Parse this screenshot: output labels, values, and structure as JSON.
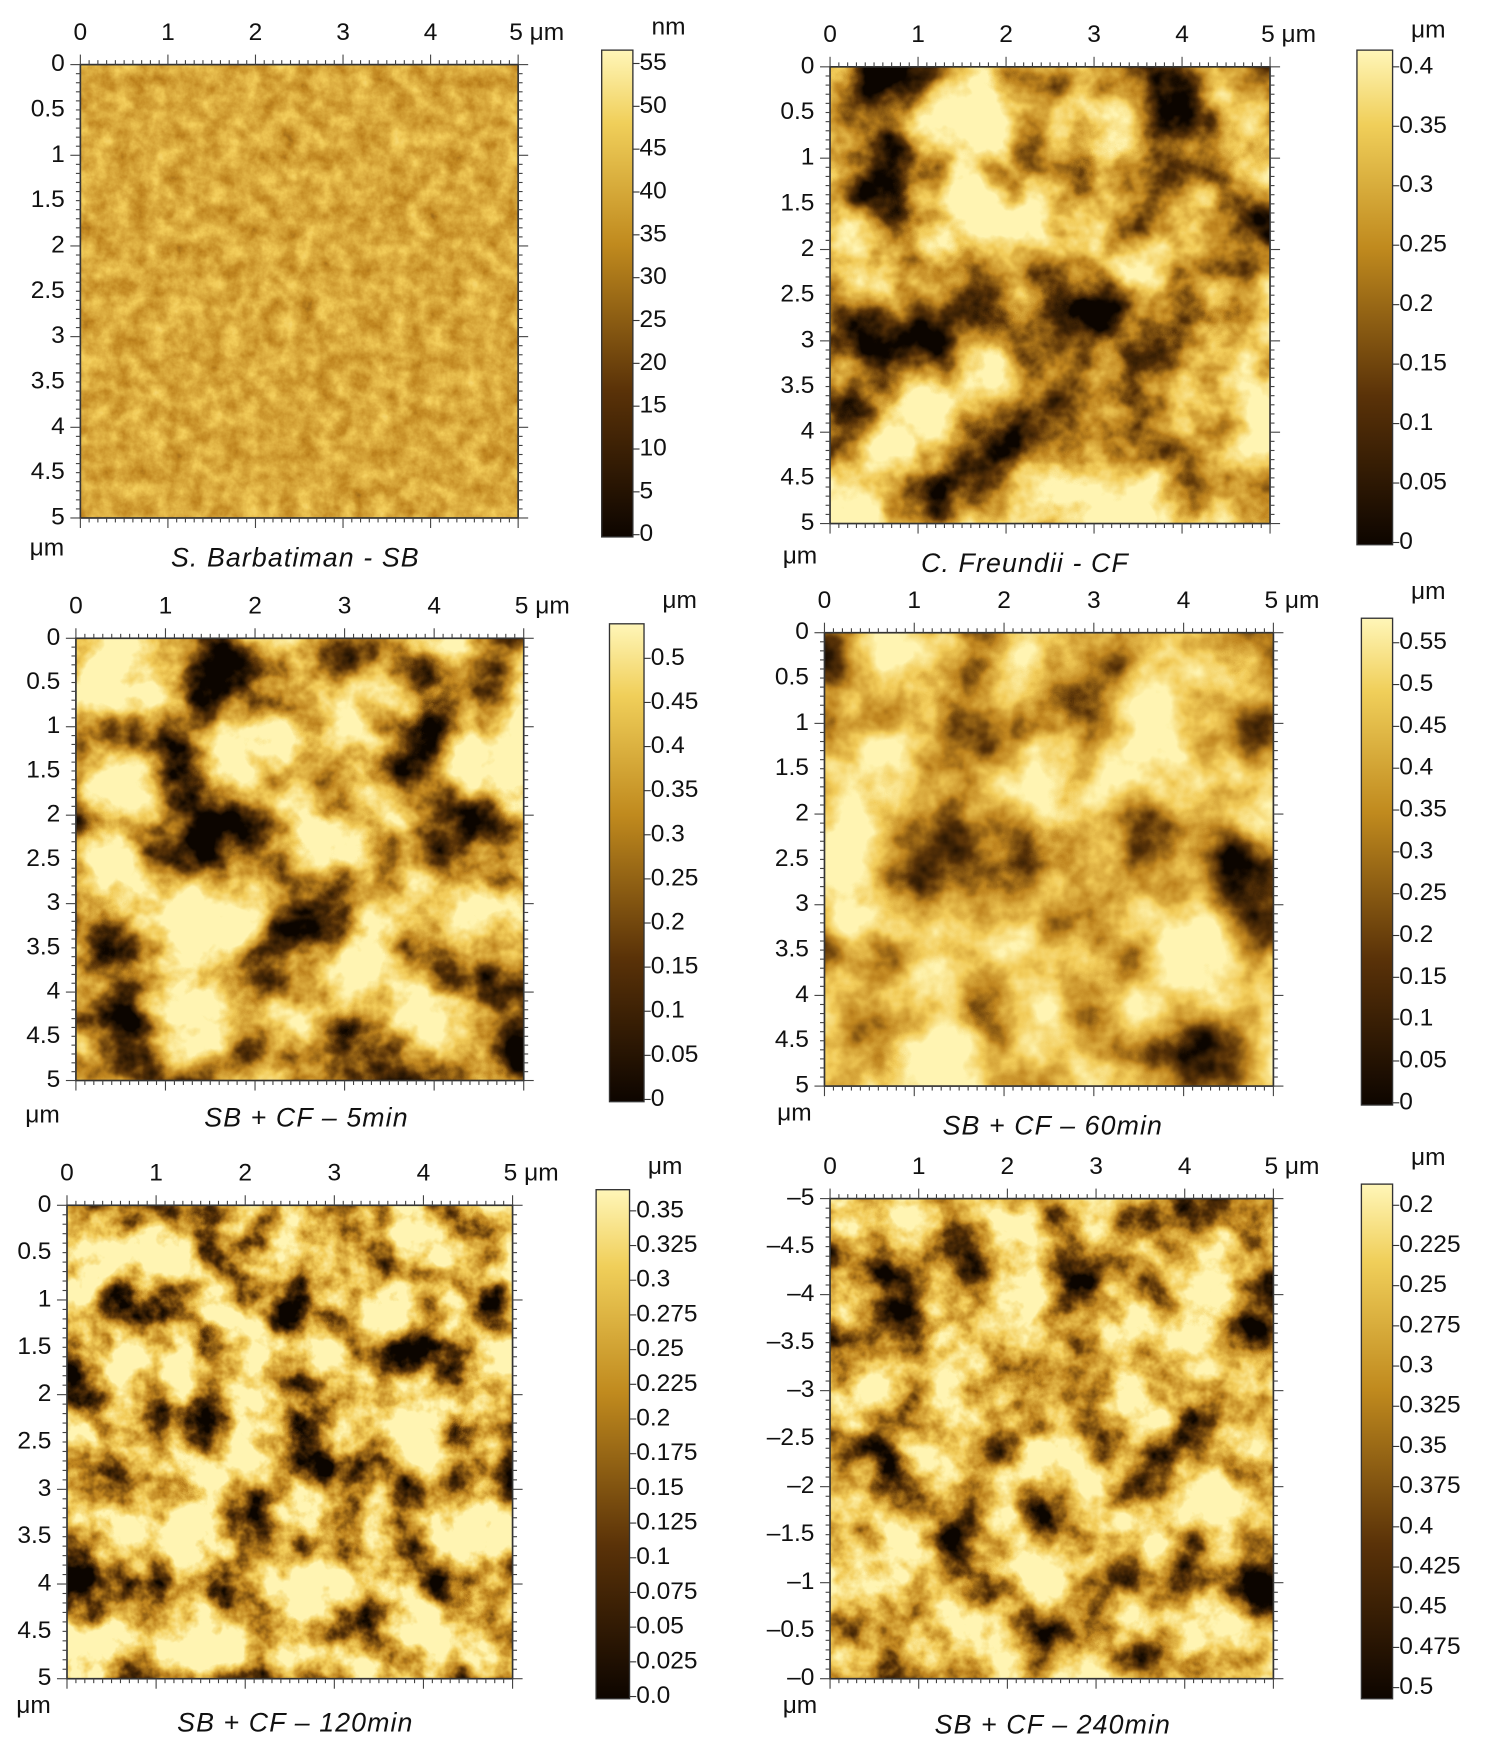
{
  "panels": [
    {
      "caption": "S. Barbatiman - SB",
      "x_ticks": [
        "0",
        "1",
        "2",
        "3",
        "4",
        "5 μm"
      ],
      "y_ticks": [
        "0",
        "0.5",
        "1",
        "1.5",
        "2",
        "2.5",
        "3",
        "3.5",
        "4",
        "4.5",
        "5"
      ],
      "axis_unit": "μm",
      "colorbar_unit": "nm",
      "colorbar_ticks": [
        "55",
        "50",
        "45",
        "40",
        "35",
        "30",
        "25",
        "20",
        "15",
        "10",
        "5",
        "0"
      ]
    },
    {
      "caption": "C. Freundii - CF",
      "x_ticks": [
        "0",
        "1",
        "2",
        "3",
        "4",
        "5 μm"
      ],
      "y_ticks": [
        "0",
        "0.5",
        "1",
        "1.5",
        "2",
        "2.5",
        "3",
        "3.5",
        "4",
        "4.5",
        "5"
      ],
      "axis_unit": "μm",
      "colorbar_unit": "μm",
      "colorbar_ticks": [
        "0.4",
        "0.35",
        "0.3",
        "0.25",
        "0.2",
        "0.15",
        "0.1",
        "0.05",
        "0"
      ]
    },
    {
      "caption": "SB + CF – 5min",
      "x_ticks": [
        "0",
        "1",
        "2",
        "3",
        "4",
        "5 μm"
      ],
      "y_ticks": [
        "0",
        "0.5",
        "1",
        "1.5",
        "2",
        "2.5",
        "3",
        "3.5",
        "4",
        "4.5",
        "5"
      ],
      "axis_unit": "μm",
      "colorbar_unit": "μm",
      "colorbar_ticks": [
        "0.5",
        "0.45",
        "0.4",
        "0.35",
        "0.3",
        "0.25",
        "0.2",
        "0.15",
        "0.1",
        "0.05",
        "0"
      ]
    },
    {
      "caption": "SB + CF – 60min",
      "x_ticks": [
        "0",
        "1",
        "2",
        "3",
        "4",
        "5 μm"
      ],
      "y_ticks": [
        "0",
        "0.5",
        "1",
        "1.5",
        "2",
        "2.5",
        "3",
        "3.5",
        "4",
        "4.5",
        "5"
      ],
      "axis_unit": "μm",
      "colorbar_unit": "μm",
      "colorbar_ticks": [
        "0.55",
        "0.5",
        "0.45",
        "0.4",
        "0.35",
        "0.3",
        "0.25",
        "0.2",
        "0.15",
        "0.1",
        "0.05",
        "0"
      ]
    },
    {
      "caption": "SB + CF – 120min",
      "x_ticks": [
        "0",
        "1",
        "2",
        "3",
        "4",
        "5 μm"
      ],
      "y_ticks": [
        "0",
        "0.5",
        "1",
        "1.5",
        "2",
        "2.5",
        "3",
        "3.5",
        "4",
        "4.5",
        "5"
      ],
      "axis_unit": "μm",
      "colorbar_unit": "μm",
      "colorbar_ticks": [
        "0.35",
        "0.325",
        "0.3",
        "0.275",
        "0.25",
        "0.225",
        "0.2",
        "0.175",
        "0.15",
        "0.125",
        "0.1",
        "0.075",
        "0.05",
        "0.025",
        "0.0"
      ]
    },
    {
      "caption": "SB + CF – 240min",
      "x_ticks": [
        "0",
        "1",
        "2",
        "3",
        "4",
        "5 μm"
      ],
      "y_ticks": [
        "–5",
        "–4.5",
        "–4",
        "–3.5",
        "–3",
        "–2.5",
        "–2",
        "–1.5",
        "–1",
        "–0.5",
        "–0"
      ],
      "axis_unit": "μm",
      "colorbar_unit": "μm",
      "colorbar_ticks": [
        "0.2",
        "0.225",
        "0.25",
        "0.275",
        "0.3",
        "0.325",
        "0.35",
        "0.375",
        "0.4",
        "0.425",
        "0.45",
        "0.475",
        "0.5"
      ]
    }
  ]
}
